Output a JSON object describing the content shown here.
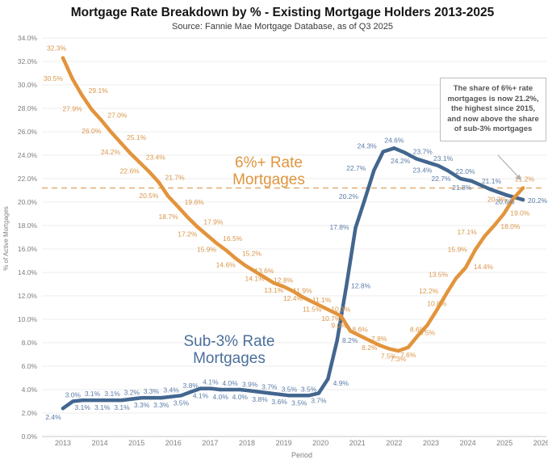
{
  "title": "Mortgage Rate Breakdown by % - Existing Mortgage Holders 2013-2025",
  "subtitle": "Source: Fannie Mae Mortgage Database, as of Q3 2025",
  "chart_data": {
    "type": "line",
    "title": "Mortgage Rate Breakdown by % - Existing Mortgage Holders 2013-2025",
    "subtitle": "Source: Fannie Mae Mortgage Database, as of Q3 2025",
    "xlabel": "Period",
    "ylabel": "% of Active Mortgages",
    "ylim": [
      0,
      34
    ],
    "ytick_step": 2,
    "ytick_format": "0.0%",
    "xticks": [
      2013,
      2014,
      2015,
      2016,
      2017,
      2018,
      2019,
      2020,
      2021,
      2022,
      2023,
      2024,
      2025,
      2026
    ],
    "grid": "horizontal",
    "reference_line": {
      "value": 21.2,
      "style": "dashed",
      "color": "#E4B27E"
    },
    "annotation": {
      "text": "The share of 6%+ rate mortgages is now 21.2%, the highest since 2015, and now above the share of sub-3% mortgages"
    },
    "series": [
      {
        "name": "Sub-3% Rate Mortgages",
        "color": "#42668F",
        "label_color": "#5B7CA8",
        "x": [
          2013.0,
          2013.27,
          2013.53,
          2013.8,
          2014.07,
          2014.34,
          2014.6,
          2014.87,
          2015.14,
          2015.4,
          2015.67,
          2015.94,
          2016.21,
          2016.47,
          2016.74,
          2017.01,
          2017.28,
          2017.54,
          2017.81,
          2018.08,
          2018.35,
          2018.61,
          2018.88,
          2019.15,
          2019.42,
          2019.68,
          2019.95,
          2020.2,
          2020.45,
          2020.7,
          2020.95,
          2021.2,
          2021.45,
          2021.7,
          2022.0,
          2022.3,
          2022.6,
          2022.9,
          2023.2,
          2023.45,
          2023.8,
          2024.1,
          2024.6,
          2025.05,
          2025.5
        ],
        "values": [
          2.4,
          3.0,
          3.1,
          3.1,
          3.1,
          3.1,
          3.1,
          3.2,
          3.3,
          3.3,
          3.3,
          3.4,
          3.5,
          3.8,
          4.1,
          4.1,
          4.0,
          4.0,
          4.0,
          3.9,
          3.8,
          3.7,
          3.6,
          3.5,
          3.5,
          3.5,
          3.7,
          4.9,
          8.2,
          12.8,
          17.8,
          20.2,
          22.7,
          24.3,
          24.6,
          24.2,
          23.7,
          23.4,
          23.1,
          22.7,
          22.0,
          21.8,
          21.1,
          20.6,
          20.2
        ]
      },
      {
        "name": "6%+ Rate Mortgages",
        "color": "#E2943C",
        "label_color": "#D9964A",
        "x": [
          2013.0,
          2013.26,
          2013.52,
          2013.78,
          2014.04,
          2014.3,
          2014.56,
          2014.82,
          2015.08,
          2015.34,
          2015.6,
          2015.86,
          2016.13,
          2016.39,
          2016.65,
          2016.91,
          2017.17,
          2017.43,
          2017.69,
          2017.95,
          2018.21,
          2018.47,
          2018.73,
          2018.99,
          2019.25,
          2019.51,
          2019.77,
          2020.03,
          2020.29,
          2020.55,
          2020.81,
          2021.07,
          2021.33,
          2021.59,
          2021.85,
          2022.11,
          2022.38,
          2022.64,
          2022.9,
          2023.16,
          2023.42,
          2023.68,
          2023.94,
          2024.2,
          2024.46,
          2024.72,
          2024.98,
          2025.24,
          2025.5
        ],
        "values": [
          32.3,
          30.5,
          29.1,
          27.9,
          27.0,
          26.0,
          25.1,
          24.2,
          23.4,
          22.6,
          21.7,
          20.5,
          19.6,
          18.7,
          17.9,
          17.2,
          16.5,
          15.9,
          15.2,
          14.6,
          14.1,
          13.6,
          13.1,
          12.8,
          12.4,
          11.9,
          11.5,
          11.1,
          10.7,
          10.3,
          9.0,
          8.6,
          8.2,
          7.8,
          7.5,
          7.3,
          7.6,
          8.6,
          9.5,
          10.8,
          12.2,
          13.5,
          14.4,
          15.9,
          17.1,
          18.0,
          19.0,
          20.3,
          21.2
        ]
      }
    ]
  }
}
